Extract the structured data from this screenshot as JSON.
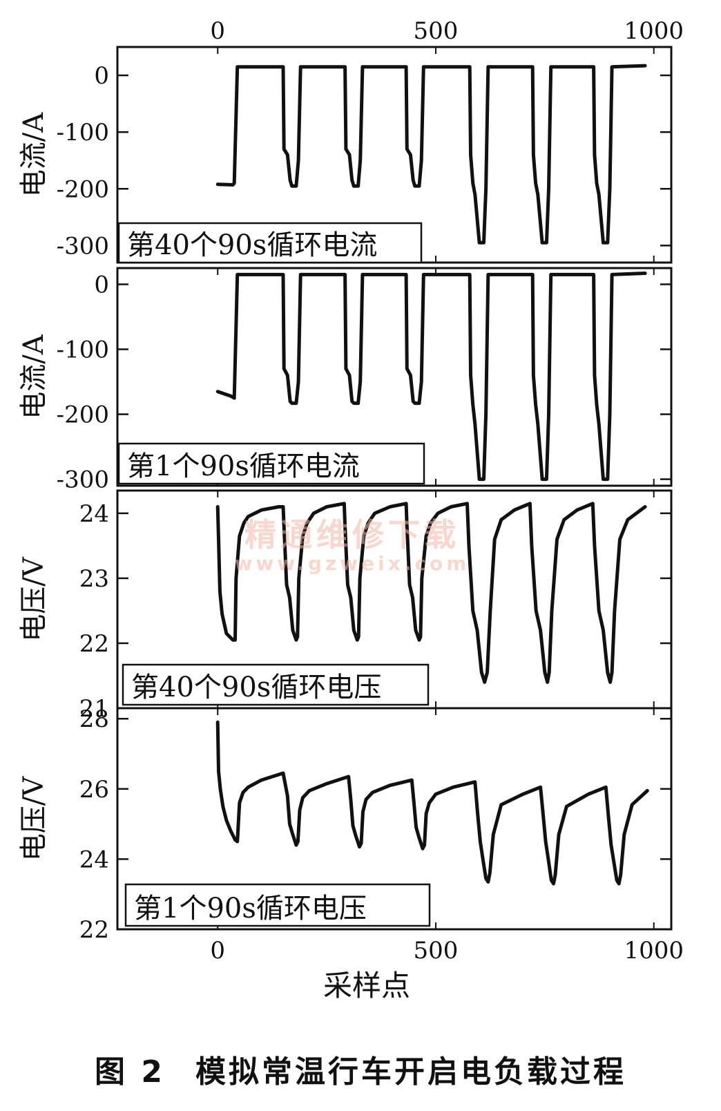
{
  "figure": {
    "caption_number": "图 2",
    "caption_text": "模拟常温行车开启电负载过程",
    "watermark": "精通维修下载",
    "watermark_url": "www.gzweix.com"
  },
  "chart_data": [
    {
      "type": "line",
      "panel_label": "第40个90s循环电流",
      "ylabel": "电流/A",
      "xlabel": "",
      "xlim": [
        -230,
        1040
      ],
      "ylim": [
        -330,
        50
      ],
      "yticks": [
        "0",
        "-100",
        "-200",
        "-300"
      ],
      "ytick_values": [
        0,
        -100,
        -200,
        -300
      ],
      "xticks": [
        "0",
        "500",
        "1000"
      ],
      "xtick_values": [
        0,
        500,
        1000
      ],
      "top_x_ticks": true,
      "series": [
        {
          "x": [
            0,
            35,
            38,
            45,
            150,
            152,
            160,
            166,
            170,
            180,
            185,
            190,
            292,
            294,
            302,
            308,
            312,
            322,
            327,
            332,
            432,
            434,
            442,
            448,
            452,
            462,
            467,
            472,
            578,
            580,
            585,
            590,
            600,
            610,
            615,
            620,
            722,
            724,
            729,
            734,
            744,
            754,
            759,
            764,
            862,
            864,
            869,
            874,
            884,
            894,
            899,
            904,
            980
          ],
          "y": [
            -192,
            -193,
            -190,
            15,
            15,
            -130,
            -140,
            -185,
            -195,
            -195,
            -150,
            15,
            15,
            -130,
            -140,
            -185,
            -195,
            -195,
            -150,
            15,
            15,
            -130,
            -140,
            -185,
            -195,
            -195,
            -150,
            15,
            15,
            -140,
            -190,
            -210,
            -295,
            -295,
            -200,
            15,
            15,
            -140,
            -190,
            -210,
            -295,
            -295,
            -200,
            15,
            15,
            -140,
            -190,
            -210,
            -295,
            -295,
            -200,
            15,
            17
          ]
        }
      ]
    },
    {
      "type": "line",
      "panel_label": "第1个90s循环电流",
      "ylabel": "电流/A",
      "xlabel": "",
      "xlim": [
        -230,
        1040
      ],
      "ylim": [
        -310,
        25
      ],
      "yticks": [
        "0",
        "-100",
        "-200",
        "-300"
      ],
      "ytick_values": [
        0,
        -100,
        -200,
        -300
      ],
      "series": [
        {
          "x": [
            0,
            30,
            38,
            45,
            150,
            152,
            160,
            166,
            170,
            180,
            185,
            190,
            292,
            294,
            302,
            308,
            312,
            322,
            327,
            332,
            432,
            434,
            442,
            448,
            452,
            462,
            467,
            472,
            578,
            580,
            585,
            590,
            600,
            610,
            615,
            620,
            722,
            724,
            729,
            734,
            744,
            754,
            759,
            764,
            862,
            864,
            869,
            874,
            884,
            894,
            899,
            904,
            980
          ],
          "y": [
            -165,
            -172,
            -175,
            15,
            15,
            -130,
            -140,
            -180,
            -183,
            -183,
            -150,
            15,
            15,
            -130,
            -140,
            -180,
            -183,
            -183,
            -150,
            15,
            15,
            -130,
            -140,
            -180,
            -183,
            -183,
            -150,
            15,
            15,
            -140,
            -185,
            -215,
            -300,
            -300,
            -200,
            15,
            15,
            -140,
            -185,
            -215,
            -300,
            -300,
            -200,
            15,
            15,
            -140,
            -185,
            -215,
            -300,
            -300,
            -200,
            15,
            17
          ]
        }
      ]
    },
    {
      "type": "line",
      "panel_label": "第40个90s循环电压",
      "ylabel": "电压/V",
      "xlabel": "",
      "xlim": [
        -230,
        1040
      ],
      "ylim": [
        21,
        24.35
      ],
      "yticks": [
        "24",
        "23",
        "22",
        "21"
      ],
      "ytick_values": [
        24,
        23,
        22,
        21
      ],
      "series": [
        {
          "x": [
            0,
            2,
            5,
            10,
            20,
            35,
            40,
            42,
            50,
            60,
            70,
            100,
            140,
            150,
            152,
            158,
            165,
            172,
            180,
            183,
            186,
            195,
            205,
            220,
            250,
            290,
            292,
            298,
            305,
            312,
            320,
            323,
            326,
            335,
            345,
            360,
            395,
            432,
            434,
            440,
            447,
            454,
            462,
            465,
            468,
            478,
            488,
            505,
            535,
            572,
            576,
            585,
            595,
            605,
            612,
            618,
            625,
            635,
            650,
            680,
            716,
            720,
            730,
            740,
            750,
            756,
            760,
            766,
            778,
            794,
            824,
            860,
            864,
            874,
            884,
            894,
            900,
            904,
            910,
            922,
            940,
            980
          ],
          "y": [
            24.1,
            23.6,
            22.8,
            22.45,
            22.15,
            22.05,
            22.05,
            23.0,
            23.65,
            23.85,
            23.95,
            24.05,
            24.1,
            24.1,
            23.8,
            22.9,
            22.7,
            22.2,
            22.05,
            22.1,
            23.0,
            23.65,
            23.85,
            24.0,
            24.1,
            24.15,
            23.8,
            22.9,
            22.7,
            22.2,
            22.05,
            22.1,
            23.0,
            23.65,
            23.85,
            24.0,
            24.1,
            24.15,
            23.8,
            22.9,
            22.7,
            22.2,
            22.05,
            22.1,
            23.0,
            23.65,
            23.85,
            24.0,
            24.1,
            24.15,
            23.5,
            22.5,
            22.2,
            21.55,
            21.4,
            21.55,
            22.5,
            23.6,
            23.9,
            24.05,
            24.15,
            23.5,
            22.5,
            22.2,
            21.55,
            21.4,
            21.55,
            22.5,
            23.6,
            23.9,
            24.05,
            24.15,
            23.5,
            22.5,
            22.2,
            21.55,
            21.4,
            21.55,
            22.5,
            23.6,
            23.9,
            24.1
          ]
        }
      ]
    },
    {
      "type": "line",
      "panel_label": "第1个90s循环电压",
      "ylabel": "电压/V",
      "xlabel": "采样点",
      "xlim": [
        -230,
        1040
      ],
      "ylim": [
        22,
        28.3
      ],
      "yticks": [
        "28",
        "26",
        "24",
        "22"
      ],
      "ytick_values": [
        28,
        26,
        24,
        22
      ],
      "xticks": [
        "0",
        "500",
        "1000"
      ],
      "xtick_values": [
        0,
        500,
        1000
      ],
      "series": [
        {
          "x": [
            0,
            2,
            6,
            12,
            20,
            30,
            40,
            45,
            50,
            58,
            70,
            100,
            150,
            160,
            165,
            172,
            180,
            184,
            188,
            195,
            210,
            250,
            300,
            305,
            310,
            317,
            325,
            329,
            333,
            340,
            355,
            395,
            445,
            450,
            455,
            462,
            470,
            474,
            478,
            485,
            500,
            540,
            590,
            596,
            602,
            608,
            615,
            620,
            624,
            632,
            650,
            700,
            740,
            746,
            752,
            758,
            765,
            770,
            774,
            782,
            800,
            850,
            890,
            896,
            902,
            908,
            915,
            920,
            924,
            932,
            950,
            985
          ],
          "y": [
            27.9,
            26.5,
            26.0,
            25.5,
            25.1,
            24.8,
            24.55,
            24.5,
            25.6,
            25.9,
            26.05,
            26.25,
            26.45,
            25.8,
            25.0,
            24.7,
            24.4,
            24.5,
            25.4,
            25.75,
            25.95,
            26.15,
            26.35,
            25.7,
            24.95,
            24.65,
            24.35,
            24.45,
            25.35,
            25.7,
            25.9,
            26.1,
            26.25,
            25.6,
            24.9,
            24.6,
            24.3,
            24.4,
            25.3,
            25.6,
            25.85,
            26.05,
            26.2,
            25.3,
            24.5,
            24.0,
            23.45,
            23.35,
            23.6,
            24.7,
            25.55,
            25.85,
            26.05,
            25.3,
            24.5,
            24.0,
            23.4,
            23.3,
            23.55,
            24.7,
            25.5,
            25.85,
            26.05,
            25.2,
            24.4,
            23.95,
            23.4,
            23.3,
            23.55,
            24.7,
            25.55,
            25.95
          ]
        }
      ]
    }
  ]
}
